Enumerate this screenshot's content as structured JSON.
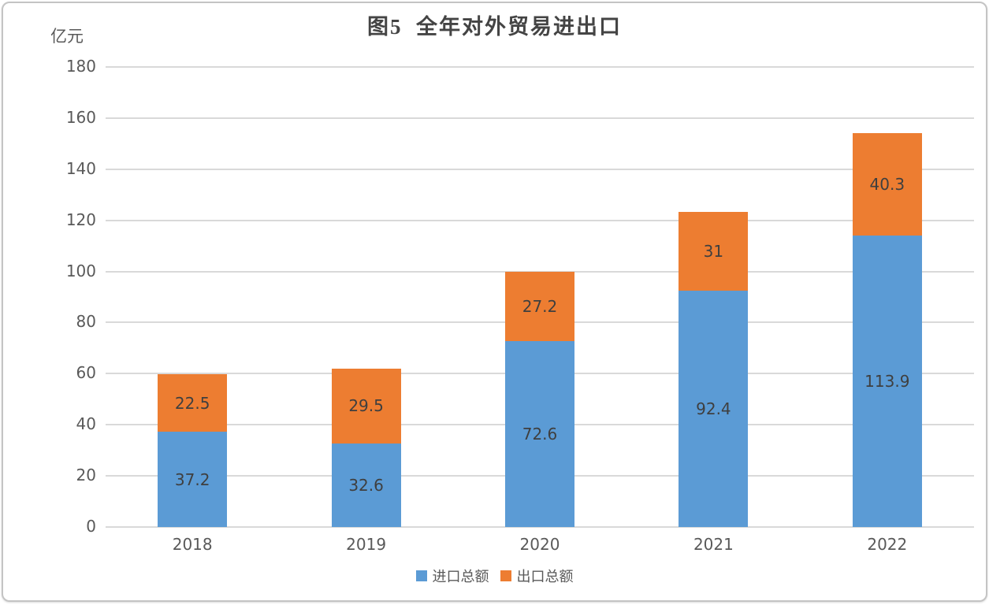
{
  "chart_data": {
    "type": "bar",
    "stacked": true,
    "title": "图5  全年对外贸易进出口",
    "unit_label": "亿元",
    "categories": [
      "2018",
      "2019",
      "2020",
      "2021",
      "2022"
    ],
    "series": [
      {
        "name": "进口总额",
        "color": "#5B9BD5",
        "values": [
          37.2,
          32.6,
          72.6,
          92.4,
          113.9
        ]
      },
      {
        "name": "出口总额",
        "color": "#ED7D31",
        "values": [
          22.5,
          29.5,
          27.2,
          31,
          40.3
        ]
      }
    ],
    "ylim": [
      0,
      180
    ],
    "yticks": [
      0,
      20,
      40,
      60,
      80,
      100,
      120,
      140,
      160,
      180
    ],
    "grid": true,
    "legend_position": "bottom",
    "colors": {
      "gridline": "#d9d9d9",
      "axis_text": "#595959",
      "data_label": "#3f3f3f",
      "title_text": "#444444",
      "frame_border": "#c4c4c4",
      "background": "#ffffff"
    }
  }
}
